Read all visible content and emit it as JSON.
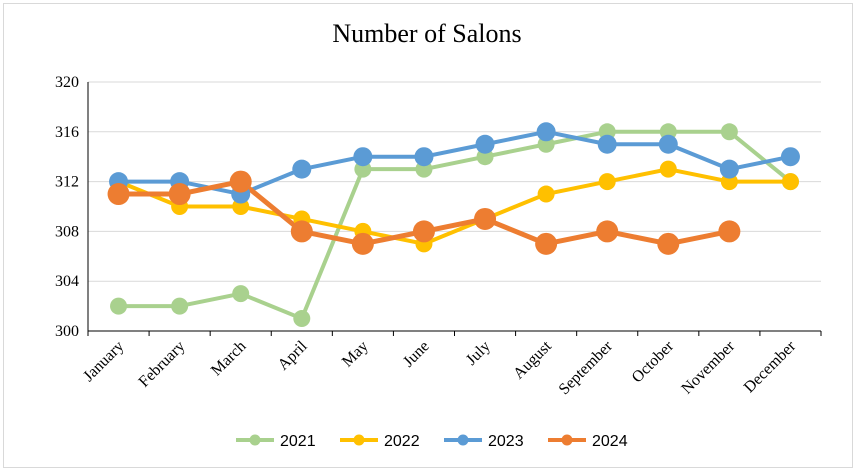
{
  "chart_data": {
    "type": "line",
    "title": "Number of Salons",
    "xlabel": "",
    "ylabel": "",
    "categories": [
      "January",
      "February",
      "March",
      "April",
      "May",
      "June",
      "July",
      "August",
      "September",
      "October",
      "November",
      "December"
    ],
    "ylim": [
      300,
      320
    ],
    "yticks": [
      300,
      304,
      308,
      312,
      316,
      320
    ],
    "grid": true,
    "legend_position": "bottom",
    "series": [
      {
        "name": "2021",
        "color": "#a9d18e",
        "values": [
          302,
          302,
          303,
          301,
          313,
          313,
          314,
          315,
          316,
          316,
          316,
          312
        ]
      },
      {
        "name": "2022",
        "color": "#ffc000",
        "values": [
          312,
          310,
          310,
          309,
          308,
          307,
          309,
          311,
          312,
          313,
          312,
          312
        ]
      },
      {
        "name": "2023",
        "color": "#5b9bd5",
        "values": [
          312,
          312,
          311,
          313,
          314,
          314,
          315,
          316,
          315,
          315,
          313,
          314
        ]
      },
      {
        "name": "2024",
        "color": "#ed7d31",
        "values": [
          311,
          311,
          312,
          308,
          307,
          308,
          309,
          307,
          308,
          307,
          308,
          null
        ]
      }
    ]
  }
}
